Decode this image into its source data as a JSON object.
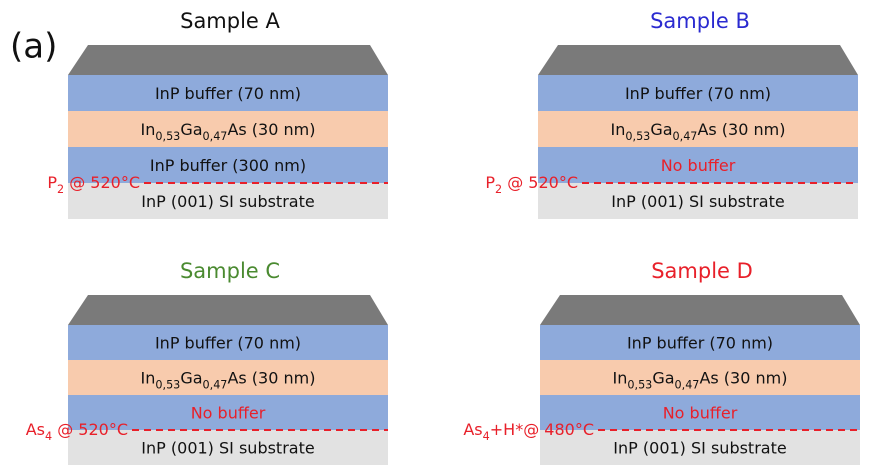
{
  "figure_label": "(a)",
  "samples": [
    {
      "title": "Sample A",
      "title_color": "#111111",
      "layers": [
        {
          "label": [
            "InP buffer (70 nm)"
          ],
          "color": "#111111"
        },
        {
          "label": [
            "In",
            "0,53",
            "Ga",
            "0,47",
            "As (30 nm)"
          ],
          "color": "#111111"
        },
        {
          "label": [
            "InP buffer (300 nm)"
          ],
          "color": "#111111"
        },
        {
          "label": [
            "InP (001) SI substrate"
          ],
          "color": "#111111"
        }
      ],
      "annotation": [
        "P",
        "2",
        " @ 520°C"
      ]
    },
    {
      "title": "Sample B",
      "title_color": "#2a2ad0",
      "layers": [
        {
          "label": [
            "InP buffer (70 nm)"
          ],
          "color": "#111111"
        },
        {
          "label": [
            "In",
            "0,53",
            "Ga",
            "0,47",
            "As (30 nm)"
          ],
          "color": "#111111"
        },
        {
          "label": [
            "No buffer"
          ],
          "color": "#e8202a"
        },
        {
          "label": [
            "InP (001) SI substrate"
          ],
          "color": "#111111"
        }
      ],
      "annotation": [
        "P",
        "2",
        " @ 520°C"
      ]
    },
    {
      "title": "Sample C",
      "title_color": "#4a8a30",
      "layers": [
        {
          "label": [
            "InP buffer (70 nm)"
          ],
          "color": "#111111"
        },
        {
          "label": [
            "In",
            "0,53",
            "Ga",
            "0,47",
            "As (30 nm)"
          ],
          "color": "#111111"
        },
        {
          "label": [
            "No buffer"
          ],
          "color": "#e8202a"
        },
        {
          "label": [
            "InP (001) SI substrate"
          ],
          "color": "#111111"
        }
      ],
      "annotation": [
        "As",
        "4",
        " @ 520°C"
      ]
    },
    {
      "title": "Sample D",
      "title_color": "#e8202a",
      "layers": [
        {
          "label": [
            "InP buffer (70 nm)"
          ],
          "color": "#111111"
        },
        {
          "label": [
            "In",
            "0,53",
            "Ga",
            "0,47",
            "As (30 nm)"
          ],
          "color": "#111111"
        },
        {
          "label": [
            "No buffer"
          ],
          "color": "#e8202a"
        },
        {
          "label": [
            "InP (001) SI substrate"
          ],
          "color": "#111111"
        }
      ],
      "annotation": [
        "As",
        "4",
        "+H*@ 480°C"
      ]
    }
  ]
}
